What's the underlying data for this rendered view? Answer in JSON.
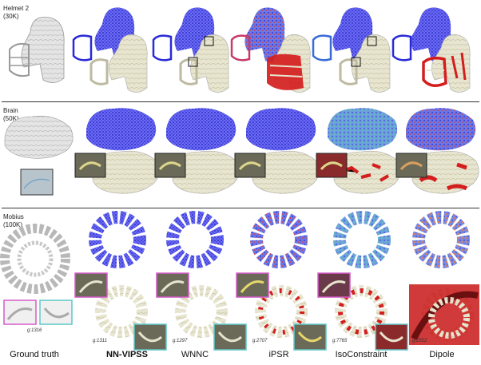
{
  "rows": [
    {
      "name": "Helmet 2",
      "count": "(30K)"
    },
    {
      "name": "Brain",
      "count": "(50K)"
    },
    {
      "name": "Mobius",
      "count": "(100K)"
    }
  ],
  "columns": [
    "Ground truth",
    "NN-VIPSS",
    "WNNC",
    "iPSR",
    "IsoConstraint",
    "Dipole"
  ],
  "genus_labels": [
    "g:1316",
    "g:1311",
    "g:1297",
    "g:2707",
    "g:7765",
    "g:2552"
  ],
  "colors": {
    "point_cloud": "#3a3ad8",
    "surface": "#e6e4cc",
    "error": "#d81c1c",
    "inset_magenta": "#d45ac8",
    "inset_cyan": "#5ec8c8"
  }
}
